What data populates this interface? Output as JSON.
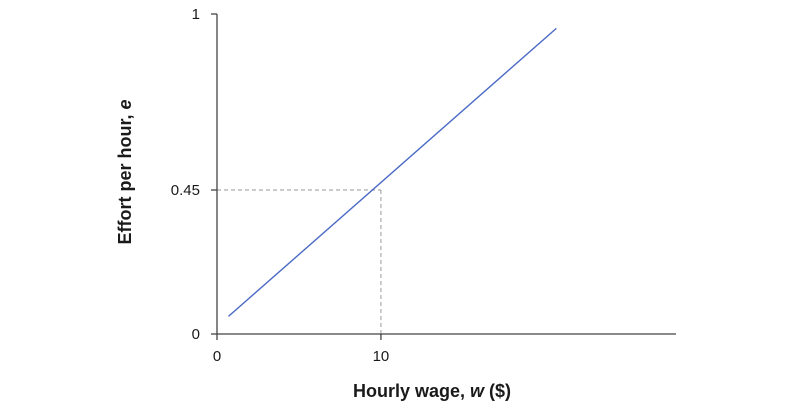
{
  "chart_data": {
    "type": "line",
    "title": "",
    "xlabel_parts": [
      "Hourly wage, ",
      "w",
      " ($)"
    ],
    "ylabel_parts": [
      "Effort per hour, ",
      "e"
    ],
    "x_ticks": [
      0,
      10
    ],
    "y_ticks": [
      0,
      0.45,
      1
    ],
    "x_tick_labels": [
      "0",
      "10"
    ],
    "y_tick_labels": [
      "0",
      "0.45",
      "1"
    ],
    "xlim": [
      0,
      28
    ],
    "ylim": [
      0,
      1
    ],
    "series": [
      {
        "x": [
          0.7,
          20.7
        ],
        "y": [
          0.055,
          0.955
        ],
        "color": "#4a6ac4"
      }
    ],
    "reference_point": {
      "x": 10,
      "y": 0.45
    },
    "grid": false,
    "axis_color": "#444444",
    "guide_color": "#9a9a9a"
  }
}
